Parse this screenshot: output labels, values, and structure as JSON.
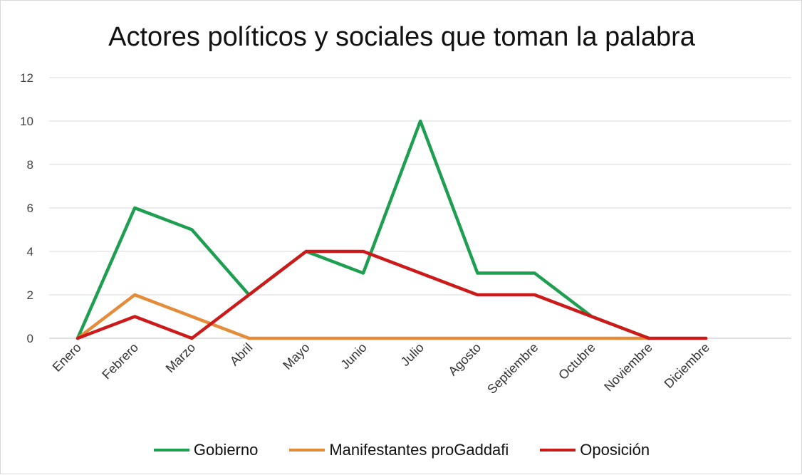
{
  "chart_data": {
    "type": "line",
    "title": "Actores políticos y sociales que toman la palabra",
    "xlabel": "",
    "ylabel": "",
    "categories": [
      "Enero",
      "Febrero",
      "Marzo",
      "Abril",
      "Mayo",
      "Junio",
      "Julio",
      "Agosto",
      "Septiembre",
      "Octubre",
      "Noviembre",
      "Diciembre"
    ],
    "ylim": [
      0,
      12
    ],
    "yticks": [
      "0",
      "2",
      "4",
      "6",
      "8",
      "10",
      "12"
    ],
    "grid": true,
    "legend_position": "bottom",
    "series": [
      {
        "name": "Gobierno",
        "color": "#1e9e50",
        "values": [
          0,
          6,
          5,
          2,
          4,
          3,
          10,
          3,
          3,
          1,
          0,
          null
        ]
      },
      {
        "name": "Manifestantes proGaddafi",
        "color": "#e58c3a",
        "values": [
          0,
          2,
          1,
          0,
          0,
          0,
          0,
          0,
          0,
          0,
          0,
          null
        ]
      },
      {
        "name": "Oposición",
        "color": "#cc1a1a",
        "values": [
          0,
          1,
          0,
          2,
          4,
          4,
          3,
          2,
          2,
          1,
          0,
          0
        ]
      }
    ]
  }
}
